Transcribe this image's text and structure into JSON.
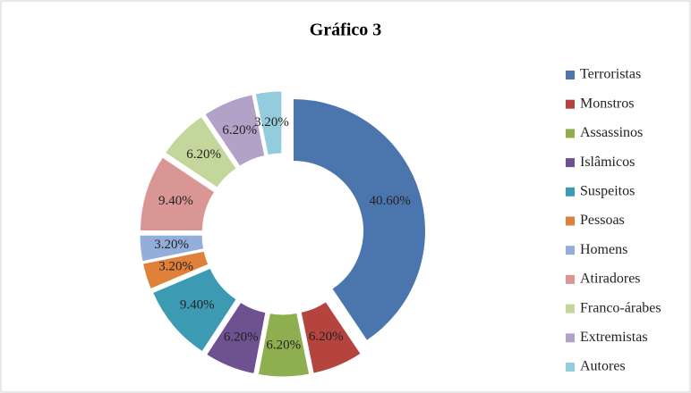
{
  "chart_data": {
    "type": "doughnut",
    "title": "Gráfico 3",
    "categories": [
      "Terroristas",
      "Monstros",
      "Assassinos",
      "Islâmicos",
      "Suspeitos",
      "Pessoas",
      "Homens",
      "Atiradores",
      "Franco-árabes",
      "Extremistas",
      "Autores"
    ],
    "values": [
      40.6,
      6.2,
      6.2,
      6.2,
      9.4,
      3.2,
      3.2,
      9.4,
      6.2,
      6.2,
      3.2
    ],
    "value_labels": [
      "40.60%",
      "6.20%",
      "6.20%",
      "6.20%",
      "9.40%",
      "3.20%",
      "3.20%",
      "9.40%",
      "6.20%",
      "6.20%",
      "3.20%"
    ],
    "colors": [
      "#4a76ad",
      "#b5443f",
      "#8fae4f",
      "#6e5190",
      "#3c9bb3",
      "#e0813a",
      "#93aedb",
      "#d99694",
      "#c3d69b",
      "#b3a2c7",
      "#93cddd"
    ],
    "legend": "right"
  }
}
